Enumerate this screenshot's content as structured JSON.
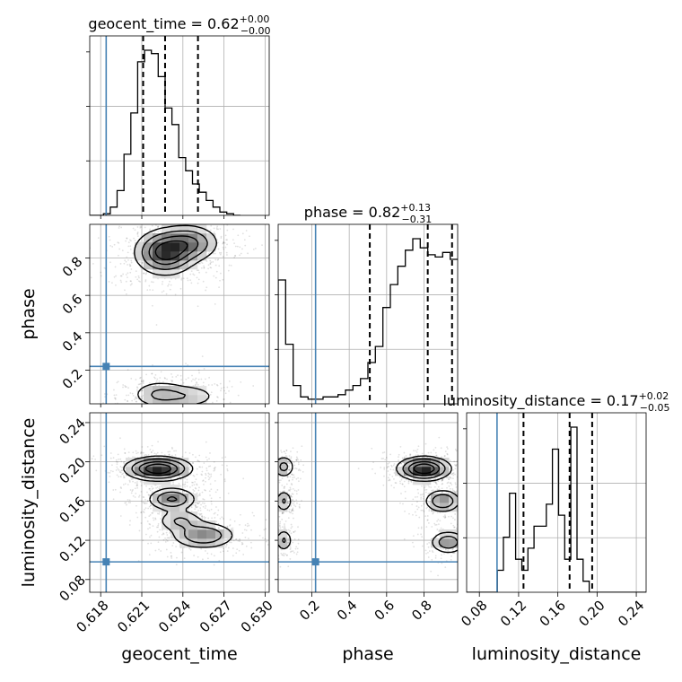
{
  "chart_data": {
    "type": "corner",
    "parameters": [
      "geocent_time",
      "phase",
      "luminosity_distance"
    ],
    "axis_labels": [
      "geocent_time",
      "phase",
      "luminosity_distance"
    ],
    "titles": [
      {
        "param": "geocent_time",
        "median": "0.62",
        "plus": "+0.00",
        "minus": "−0.00"
      },
      {
        "param": "phase",
        "median": "0.82",
        "plus": "+0.13",
        "minus": "−0.31"
      },
      {
        "param": "luminosity_distance",
        "median": "0.17",
        "plus": "+0.02",
        "minus": "−0.05"
      }
    ],
    "ranges": [
      [
        0.6172,
        0.6303
      ],
      [
        0.02,
        0.98
      ],
      [
        0.067,
        0.25
      ]
    ],
    "ticks": {
      "geocent_time": [
        0.618,
        0.621,
        0.624,
        0.627,
        0.63
      ],
      "phase": [
        0.2,
        0.4,
        0.6,
        0.8
      ],
      "luminosity_distance": [
        0.08,
        0.12,
        0.16,
        0.2,
        0.24
      ]
    },
    "tick_labels": {
      "geocent_time": [
        "0.618",
        "0.621",
        "0.624",
        "0.627",
        "0.630"
      ],
      "phase": [
        "0.2",
        "0.4",
        "0.6",
        "0.8"
      ],
      "luminosity_distance": [
        "0.08",
        "0.12",
        "0.16",
        "0.20",
        "0.24"
      ]
    },
    "truths": [
      0.6184,
      0.22,
      0.098
    ],
    "truth_color": "#4682b4",
    "quantiles": [
      [
        0.6211,
        0.6227,
        0.6251
      ],
      [
        0.51,
        0.82,
        0.95
      ],
      [
        0.125,
        0.172,
        0.195
      ]
    ],
    "hist1d": [
      {
        "bin_edges_start": 0.6172,
        "bin_width": 0.0005,
        "counts": [
          0,
          0,
          1,
          5,
          15,
          37,
          62,
          93,
          100,
          98,
          84,
          65,
          55,
          35,
          27,
          19,
          14,
          9,
          5,
          2,
          1,
          0
        ]
      },
      {
        "bin_edges_start": 0.02,
        "bin_width": 0.04,
        "counts": [
          54,
          26,
          8,
          3,
          2,
          2,
          3,
          3,
          4,
          6,
          8,
          11,
          18,
          25,
          42,
          52,
          60,
          67,
          72,
          68,
          65,
          64,
          66,
          63
        ]
      },
      {
        "bin_edges_start": 0.067,
        "bin_width": 0.00625,
        "counts": [
          0,
          0,
          0,
          0,
          0,
          2,
          5,
          9,
          3,
          2,
          4,
          6,
          6,
          8,
          13,
          7,
          3,
          15,
          3,
          1,
          0,
          0,
          0,
          0,
          0,
          0,
          0,
          0,
          0,
          0
        ]
      }
    ],
    "density_blobs": {
      "phase_vs_geocent_time": [
        {
          "x": 0.6227,
          "y": 0.83,
          "sx": 0.0011,
          "sy": 0.06,
          "w": 1.0
        },
        {
          "x": 0.6245,
          "y": 0.88,
          "sx": 0.0011,
          "sy": 0.05,
          "w": 0.6
        },
        {
          "x": 0.6223,
          "y": 0.07,
          "sx": 0.0011,
          "sy": 0.04,
          "w": 0.35
        },
        {
          "x": 0.6245,
          "y": 0.06,
          "sx": 0.0012,
          "sy": 0.035,
          "w": 0.25
        }
      ],
      "luminosity_distance_vs_geocent_time": [
        {
          "x": 0.6222,
          "y": 0.193,
          "sx": 0.0012,
          "sy": 0.006,
          "w": 1.0
        },
        {
          "x": 0.6232,
          "y": 0.162,
          "sx": 0.0009,
          "sy": 0.006,
          "w": 0.55
        },
        {
          "x": 0.6255,
          "y": 0.125,
          "sx": 0.0012,
          "sy": 0.007,
          "w": 0.5
        },
        {
          "x": 0.6238,
          "y": 0.14,
          "sx": 0.0009,
          "sy": 0.006,
          "w": 0.3
        }
      ],
      "luminosity_distance_vs_phase": [
        {
          "x": 0.8,
          "y": 0.193,
          "sx": 0.07,
          "sy": 0.006,
          "w": 1.0
        },
        {
          "x": 0.9,
          "y": 0.16,
          "sx": 0.05,
          "sy": 0.006,
          "w": 0.5
        },
        {
          "x": 0.93,
          "y": 0.118,
          "sx": 0.05,
          "sy": 0.006,
          "w": 0.45
        },
        {
          "x": 0.05,
          "y": 0.195,
          "sx": 0.03,
          "sy": 0.006,
          "w": 0.35
        },
        {
          "x": 0.05,
          "y": 0.16,
          "sx": 0.025,
          "sy": 0.006,
          "w": 0.3
        },
        {
          "x": 0.05,
          "y": 0.12,
          "sx": 0.025,
          "sy": 0.006,
          "w": 0.3
        }
      ]
    },
    "grid": true
  }
}
